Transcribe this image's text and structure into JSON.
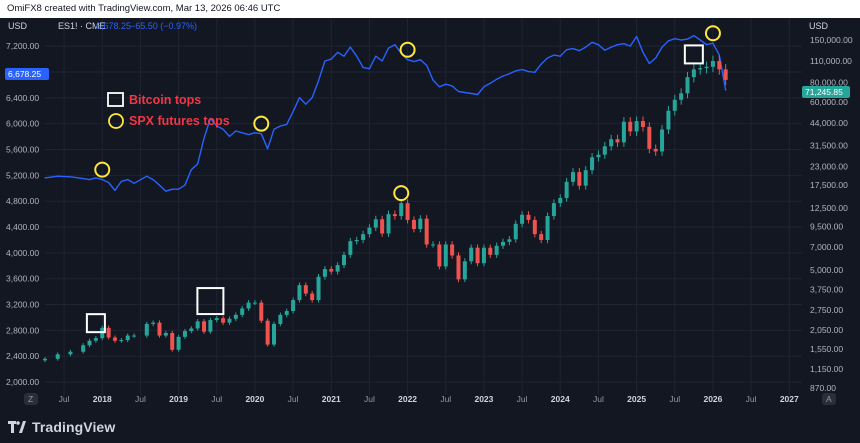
{
  "header": {
    "attribution": "OmiFX8 created with TradingView.com, Mar 13, 2026 06:46 UTC"
  },
  "legend": {
    "currency_left": "USD",
    "currency_right": "USD",
    "symbol": "ES1! · CME",
    "last_value": "6,678.25",
    "change": "−65.50 (−0.97%)"
  },
  "price_tags": {
    "left": "6,678.25",
    "right": "71,245.85"
  },
  "annotations": {
    "bitcoin_label": "Bitcoin tops",
    "spx_label": "SPX futures tops"
  },
  "footer": {
    "brand": "TradingView",
    "left_badge": "Z",
    "right_badge": "A"
  },
  "colors": {
    "background": "#131722",
    "candle_up": "#26a69a",
    "candle_down": "#ef5350",
    "btc_line": "#2962ff",
    "marker_yellow": "#ffe83b",
    "marker_white": "#ffffff",
    "label_red": "#f23645",
    "tag_left": "#2962ff",
    "tag_right": "#26a69a"
  },
  "chart_data": {
    "type": "line",
    "left_axis": {
      "ticks": [
        "7,200.00",
        "6,800.00",
        "6,400.00",
        "6,000.00",
        "5,600.00",
        "5,200.00",
        "4,800.00",
        "4,400.00",
        "4,000.00",
        "3,600.00",
        "3,200.00",
        "2,800.00",
        "2,400.00",
        "2,000.00"
      ],
      "range": [
        1800,
        7450
      ]
    },
    "right_axis": {
      "scale": "log",
      "ticks": [
        "150,000.00",
        "110,000.00",
        "80,000.00",
        "60,000.00",
        "44,000.00",
        "31,500.00",
        "23,000.00",
        "17,500.00",
        "12,500.00",
        "9,500.00",
        "7,000.00",
        "5,000.00",
        "3,750.00",
        "2,750.00",
        "2,050.00",
        "1,550.00",
        "1,150.00",
        "870.00"
      ]
    },
    "x_axis": {
      "labels": [
        "Jul",
        "2018",
        "Jul",
        "2019",
        "Jul",
        "2020",
        "Jul",
        "2021",
        "Jul",
        "2022",
        "Jul",
        "2023",
        "Jul",
        "2024",
        "Jul",
        "2025",
        "Jul",
        "2026",
        "Jul",
        "2027"
      ],
      "range": [
        "2017-04",
        "2027-03"
      ]
    },
    "series": [
      {
        "name": "ES1! · CME",
        "style": "candles",
        "axis": "left",
        "x": [
          "2017-04",
          "2017-06",
          "2017-08",
          "2017-10",
          "2017-11",
          "2017-12",
          "2018-01",
          "2018-02",
          "2018-03",
          "2018-04",
          "2018-05",
          "2018-06",
          "2018-08",
          "2018-09",
          "2018-10",
          "2018-11",
          "2018-12",
          "2019-01",
          "2019-02",
          "2019-03",
          "2019-04",
          "2019-05",
          "2019-06",
          "2019-07",
          "2019-08",
          "2019-09",
          "2019-10",
          "2019-11",
          "2019-12",
          "2020-01",
          "2020-02",
          "2020-03",
          "2020-04",
          "2020-05",
          "2020-06",
          "2020-07",
          "2020-08",
          "2020-09",
          "2020-10",
          "2020-11",
          "2020-12",
          "2021-01",
          "2021-02",
          "2021-03",
          "2021-04",
          "2021-05",
          "2021-06",
          "2021-07",
          "2021-08",
          "2021-09",
          "2021-10",
          "2021-11",
          "2021-12",
          "2022-01",
          "2022-02",
          "2022-03",
          "2022-04",
          "2022-05",
          "2022-06",
          "2022-07",
          "2022-08",
          "2022-09",
          "2022-10",
          "2022-11",
          "2022-12",
          "2023-01",
          "2023-02",
          "2023-03",
          "2023-04",
          "2023-05",
          "2023-06",
          "2023-07",
          "2023-08",
          "2023-09",
          "2023-10",
          "2023-11",
          "2023-12",
          "2024-01",
          "2024-02",
          "2024-03",
          "2024-04",
          "2024-05",
          "2024-06",
          "2024-07",
          "2024-08",
          "2024-09",
          "2024-10",
          "2024-11",
          "2024-12",
          "2025-01",
          "2025-02",
          "2025-03",
          "2025-04",
          "2025-05",
          "2025-06",
          "2025-07",
          "2025-08",
          "2025-09",
          "2025-10",
          "2025-11",
          "2025-12",
          "2026-01",
          "2026-02",
          "2026-03"
        ],
        "values": [
          2360,
          2430,
          2470,
          2570,
          2640,
          2680,
          2840,
          2690,
          2640,
          2650,
          2720,
          2720,
          2900,
          2920,
          2720,
          2760,
          2500,
          2700,
          2790,
          2830,
          2940,
          2780,
          2960,
          2990,
          2920,
          2980,
          3040,
          3140,
          3230,
          3230,
          2950,
          2580,
          2900,
          3040,
          3100,
          3270,
          3500,
          3370,
          3270,
          3630,
          3750,
          3710,
          3810,
          3970,
          4180,
          4200,
          4290,
          4390,
          4520,
          4300,
          4600,
          4570,
          4770,
          4510,
          4370,
          4530,
          4130,
          4130,
          3790,
          4130,
          3960,
          3590,
          3870,
          4080,
          3840,
          4080,
          3970,
          4110,
          4170,
          4210,
          4450,
          4590,
          4510,
          4290,
          4200,
          4570,
          4770,
          4850,
          5100,
          5250,
          5040,
          5280,
          5480,
          5520,
          5650,
          5760,
          5710,
          6030,
          5880,
          6040,
          5950,
          5610,
          5570,
          5910,
          6200,
          6370,
          6470,
          6720,
          6840,
          6860,
          6880,
          6970,
          6840,
          6678
        ]
      },
      {
        "name": "Bitcoin",
        "style": "line",
        "axis": "right",
        "x": [
          "2017-04",
          "2017-06",
          "2017-08",
          "2017-10",
          "2017-11",
          "2017-12",
          "2018-01",
          "2018-02",
          "2018-03",
          "2018-04",
          "2018-05",
          "2018-06",
          "2018-08",
          "2018-09",
          "2018-10",
          "2018-11",
          "2018-12",
          "2019-01",
          "2019-02",
          "2019-03",
          "2019-04",
          "2019-05",
          "2019-06",
          "2019-07",
          "2019-08",
          "2019-09",
          "2019-10",
          "2019-11",
          "2019-12",
          "2020-01",
          "2020-02",
          "2020-03",
          "2020-04",
          "2020-05",
          "2020-06",
          "2020-07",
          "2020-08",
          "2020-09",
          "2020-10",
          "2020-11",
          "2020-12",
          "2021-01",
          "2021-02",
          "2021-03",
          "2021-04",
          "2021-05",
          "2021-06",
          "2021-07",
          "2021-08",
          "2021-09",
          "2021-10",
          "2021-11",
          "2021-12",
          "2022-01",
          "2022-02",
          "2022-03",
          "2022-04",
          "2022-05",
          "2022-06",
          "2022-07",
          "2022-08",
          "2022-09",
          "2022-10",
          "2022-11",
          "2022-12",
          "2023-01",
          "2023-02",
          "2023-03",
          "2023-04",
          "2023-05",
          "2023-06",
          "2023-07",
          "2023-08",
          "2023-09",
          "2023-10",
          "2023-11",
          "2023-12",
          "2024-01",
          "2024-02",
          "2024-03",
          "2024-04",
          "2024-05",
          "2024-06",
          "2024-07",
          "2024-08",
          "2024-09",
          "2024-10",
          "2024-11",
          "2024-12",
          "2025-01",
          "2025-02",
          "2025-03",
          "2025-04",
          "2025-05",
          "2025-06",
          "2025-07",
          "2025-08",
          "2025-09",
          "2025-10",
          "2025-11",
          "2025-12",
          "2026-01",
          "2026-02",
          "2026-03"
        ],
        "values": [
          19500,
          20000,
          19800,
          19300,
          19000,
          19500,
          19000,
          18200,
          16200,
          18500,
          19000,
          18000,
          20000,
          19000,
          17500,
          16000,
          16500,
          16500,
          17500,
          22000,
          24000,
          35000,
          47000,
          42000,
          40000,
          36000,
          39000,
          38000,
          37000,
          38000,
          37500,
          30000,
          40000,
          42000,
          43000,
          52000,
          64000,
          58000,
          64000,
          82000,
          110000,
          113000,
          125000,
          118000,
          135000,
          118000,
          100000,
          98000,
          118000,
          110000,
          133000,
          140000,
          123000,
          112000,
          109000,
          112000,
          103000,
          83000,
          75000,
          78000,
          76000,
          70000,
          69000,
          68000,
          67000,
          75000,
          79000,
          84000,
          88000,
          91000,
          95000,
          97000,
          94000,
          93000,
          105000,
          115000,
          120000,
          118000,
          130000,
          132000,
          128000,
          135000,
          145000,
          140000,
          129000,
          135000,
          140000,
          142000,
          137000,
          158000,
          125000,
          106000,
          115000,
          135000,
          148000,
          153000,
          150000,
          152000,
          160000,
          150000,
          140000,
          143000,
          120000,
          71245
        ]
      }
    ],
    "annotations": [
      {
        "label": "Bitcoin tops",
        "marker": "white square",
        "dates": [
          "2017-12",
          "2019-06",
          "2025-10"
        ]
      },
      {
        "label": "SPX futures tops",
        "marker": "yellow circle",
        "dates": [
          "2018-01",
          "2020-02",
          "2021-12",
          "2022-01",
          "2026-01"
        ]
      }
    ]
  }
}
